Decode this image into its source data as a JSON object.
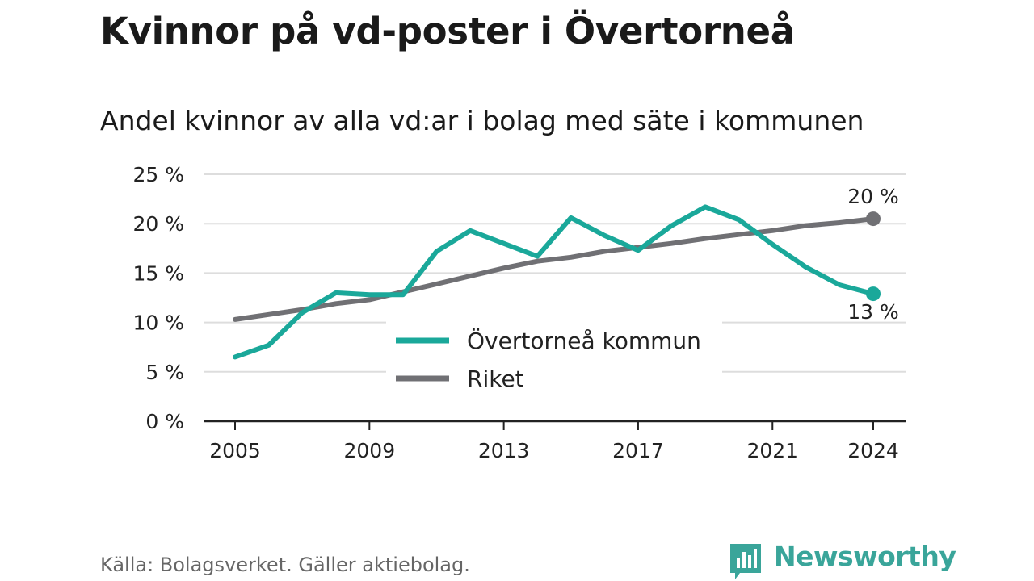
{
  "header": {
    "title": "Kvinnor på vd-poster i Övertorneå",
    "subtitle": "Andel kvinnor av alla vd:ar i bolag med säte i kommunen"
  },
  "footer": {
    "source": "Källa: Bolagsverket. Gäller aktiebolag.",
    "brand": "Newsworthy"
  },
  "colors": {
    "kommun": "#1aa89a",
    "riket": "#707074",
    "grid": "#dddddd",
    "axis": "#222222",
    "brand": "#3aa59a"
  },
  "chart_data": {
    "type": "line",
    "x": [
      2005,
      2006,
      2007,
      2008,
      2009,
      2010,
      2011,
      2012,
      2013,
      2014,
      2015,
      2016,
      2017,
      2018,
      2019,
      2020,
      2021,
      2022,
      2023,
      2024
    ],
    "series": [
      {
        "name": "Övertorneå kommun",
        "values": [
          6.5,
          7.7,
          11.0,
          13.0,
          12.8,
          12.8,
          17.2,
          19.3,
          18.0,
          16.7,
          20.6,
          18.8,
          17.3,
          19.8,
          21.7,
          20.4,
          17.9,
          15.6,
          13.8,
          12.9
        ],
        "end_label": "13 %"
      },
      {
        "name": "Riket",
        "values": [
          10.3,
          10.8,
          11.3,
          11.9,
          12.3,
          13.1,
          13.9,
          14.7,
          15.5,
          16.2,
          16.6,
          17.2,
          17.6,
          18.0,
          18.5,
          18.9,
          19.3,
          19.8,
          20.1,
          20.5
        ],
        "end_label": "20 %"
      }
    ],
    "ylim": [
      0,
      25
    ],
    "y_ticks": [
      0,
      5,
      10,
      15,
      20,
      25
    ],
    "y_tick_labels": [
      "0 %",
      "5 %",
      "10 %",
      "15 %",
      "20 %",
      "25 %"
    ],
    "x_ticks": [
      2005,
      2009,
      2013,
      2017,
      2021,
      2024
    ],
    "x_tick_labels": [
      "2005",
      "2009",
      "2013",
      "2017",
      "2021",
      "2024"
    ],
    "grid": true,
    "legend_position": "bottom-center"
  }
}
